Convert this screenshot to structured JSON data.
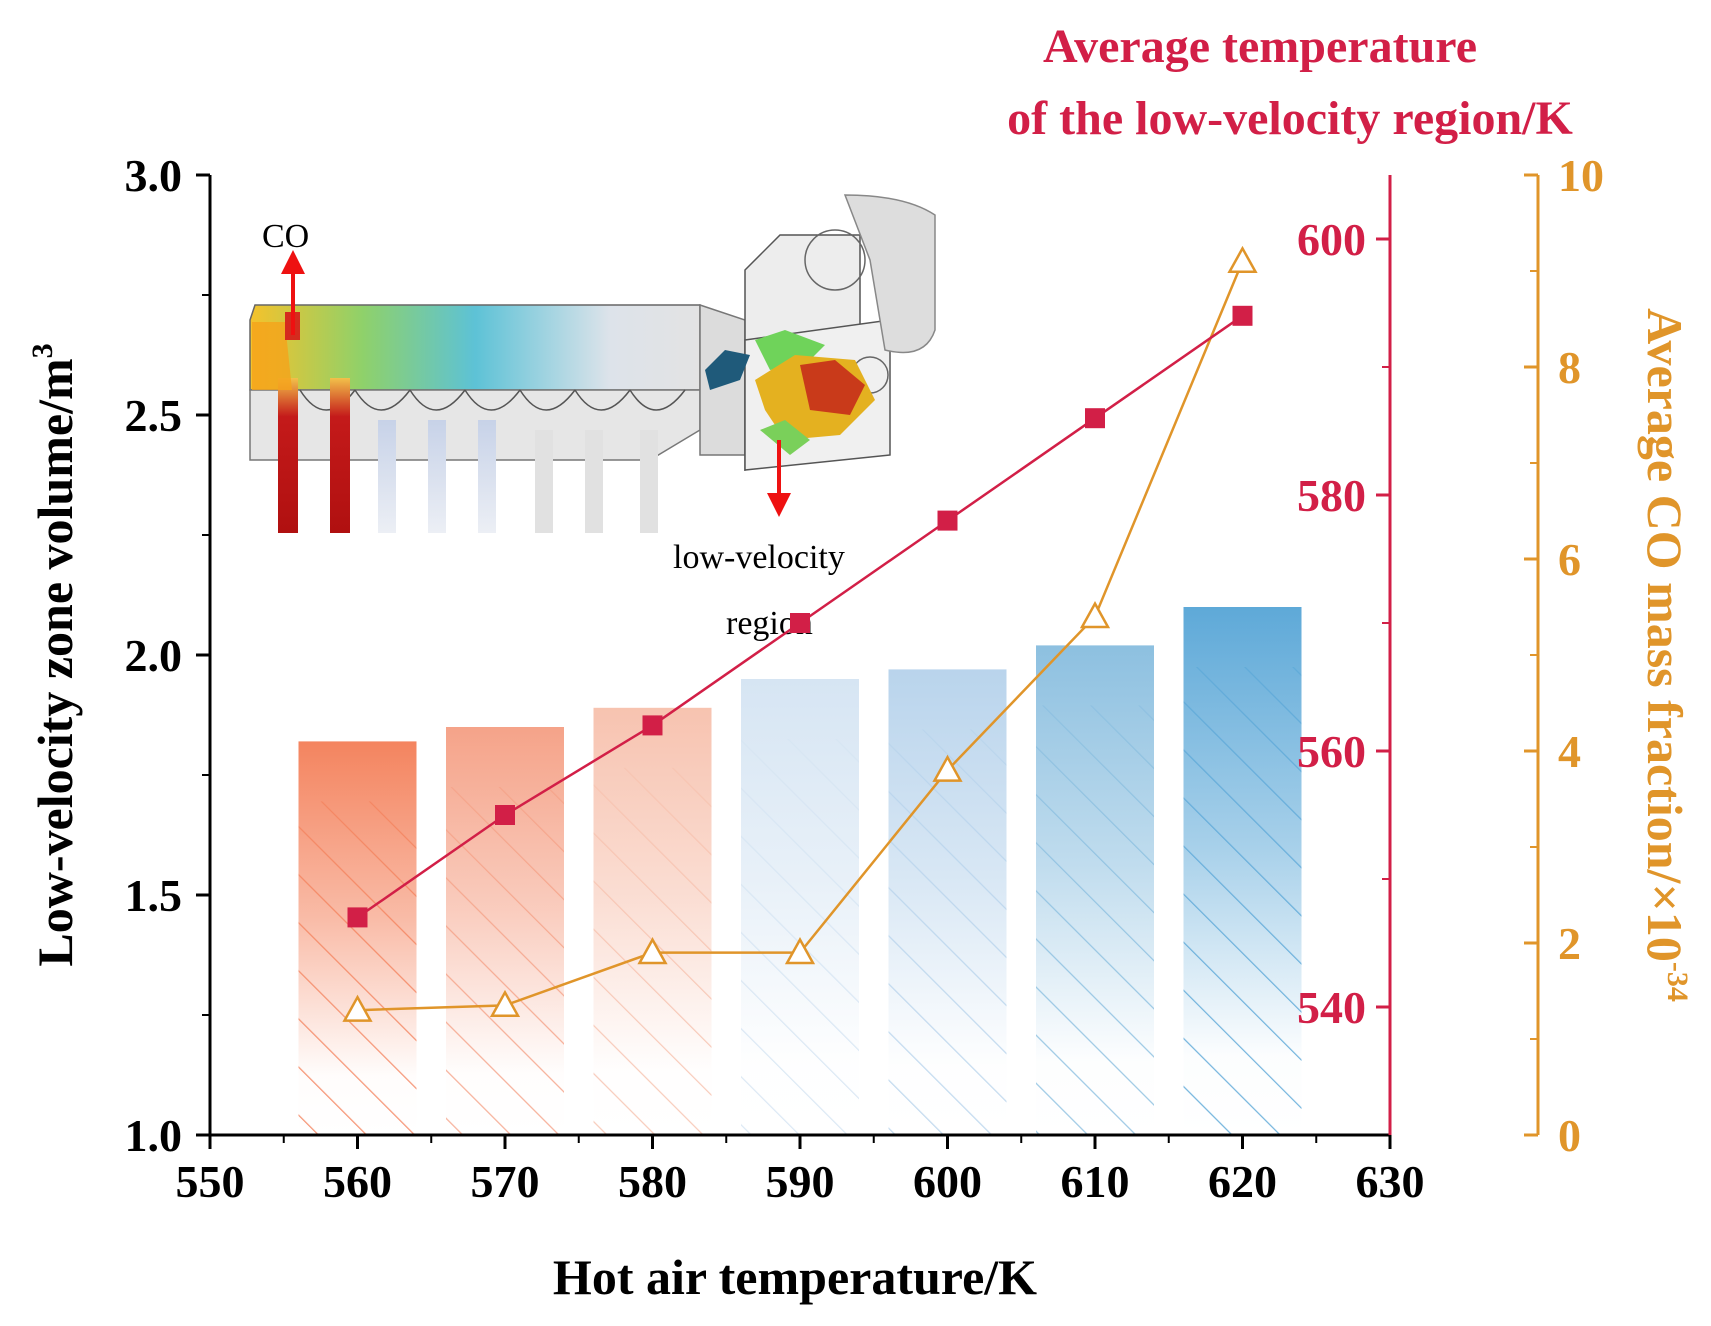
{
  "chart_data": {
    "type": "bar+line",
    "x": [
      560,
      570,
      580,
      590,
      600,
      610,
      620
    ],
    "xlim": [
      550,
      630
    ],
    "x_ticks": [
      "550",
      "560",
      "570",
      "580",
      "590",
      "600",
      "610",
      "620",
      "630"
    ],
    "xlabel": "Hot air temperature/K",
    "series": [
      {
        "name": "Low-velocity zone volume",
        "type": "bar",
        "axis": "left",
        "values": [
          1.82,
          1.85,
          1.89,
          1.95,
          1.97,
          2.02,
          2.1
        ],
        "colors": [
          "#f4845f",
          "#f5a389",
          "#f7c3b0",
          "#d6e5f3",
          "#b9d4ec",
          "#8dc0e0",
          "#5ea9d8"
        ]
      },
      {
        "name": "Average temperature of the low-velocity region",
        "type": "line",
        "marker": "filled-square",
        "axis": "right1",
        "color": "#d21f47",
        "values": [
          547,
          555,
          562,
          570,
          578,
          586,
          594
        ]
      },
      {
        "name": "Average CO mass fraction",
        "type": "line",
        "marker": "open-triangle",
        "axis": "right2",
        "color": "#e0952a",
        "values": [
          1.3,
          1.35,
          1.9,
          1.9,
          3.8,
          5.4,
          9.1
        ]
      }
    ],
    "y_left": {
      "label": "Low-velocity zone volume/m3",
      "label_base": "Low-velocity zone volume/m",
      "label_sup": "3",
      "ylim": [
        1.0,
        3.0
      ],
      "ticks": [
        "1.0",
        "1.5",
        "2.0",
        "2.5",
        "3.0"
      ]
    },
    "y_right1": {
      "title_line1": "Average temperature",
      "title_line2": "of the low-velocity region/K",
      "ylim": [
        530,
        605
      ],
      "ticks": [
        "540",
        "560",
        "580",
        "600"
      ]
    },
    "y_right2": {
      "label": "Average CO mass fraction/×10-34",
      "label_base": "Average CO mass fraction/×10",
      "label_sup": "-34",
      "ylim": [
        0,
        10
      ],
      "ticks": [
        "0",
        "2",
        "4",
        "6",
        "8",
        "10"
      ]
    },
    "annotations": {
      "co_label": "CO",
      "region_line1": "low-velocity",
      "region_line2": "region"
    }
  },
  "colors": {
    "axis_left": "#000000",
    "axis_right1": "#d21f47",
    "axis_right2": "#e0952a"
  }
}
